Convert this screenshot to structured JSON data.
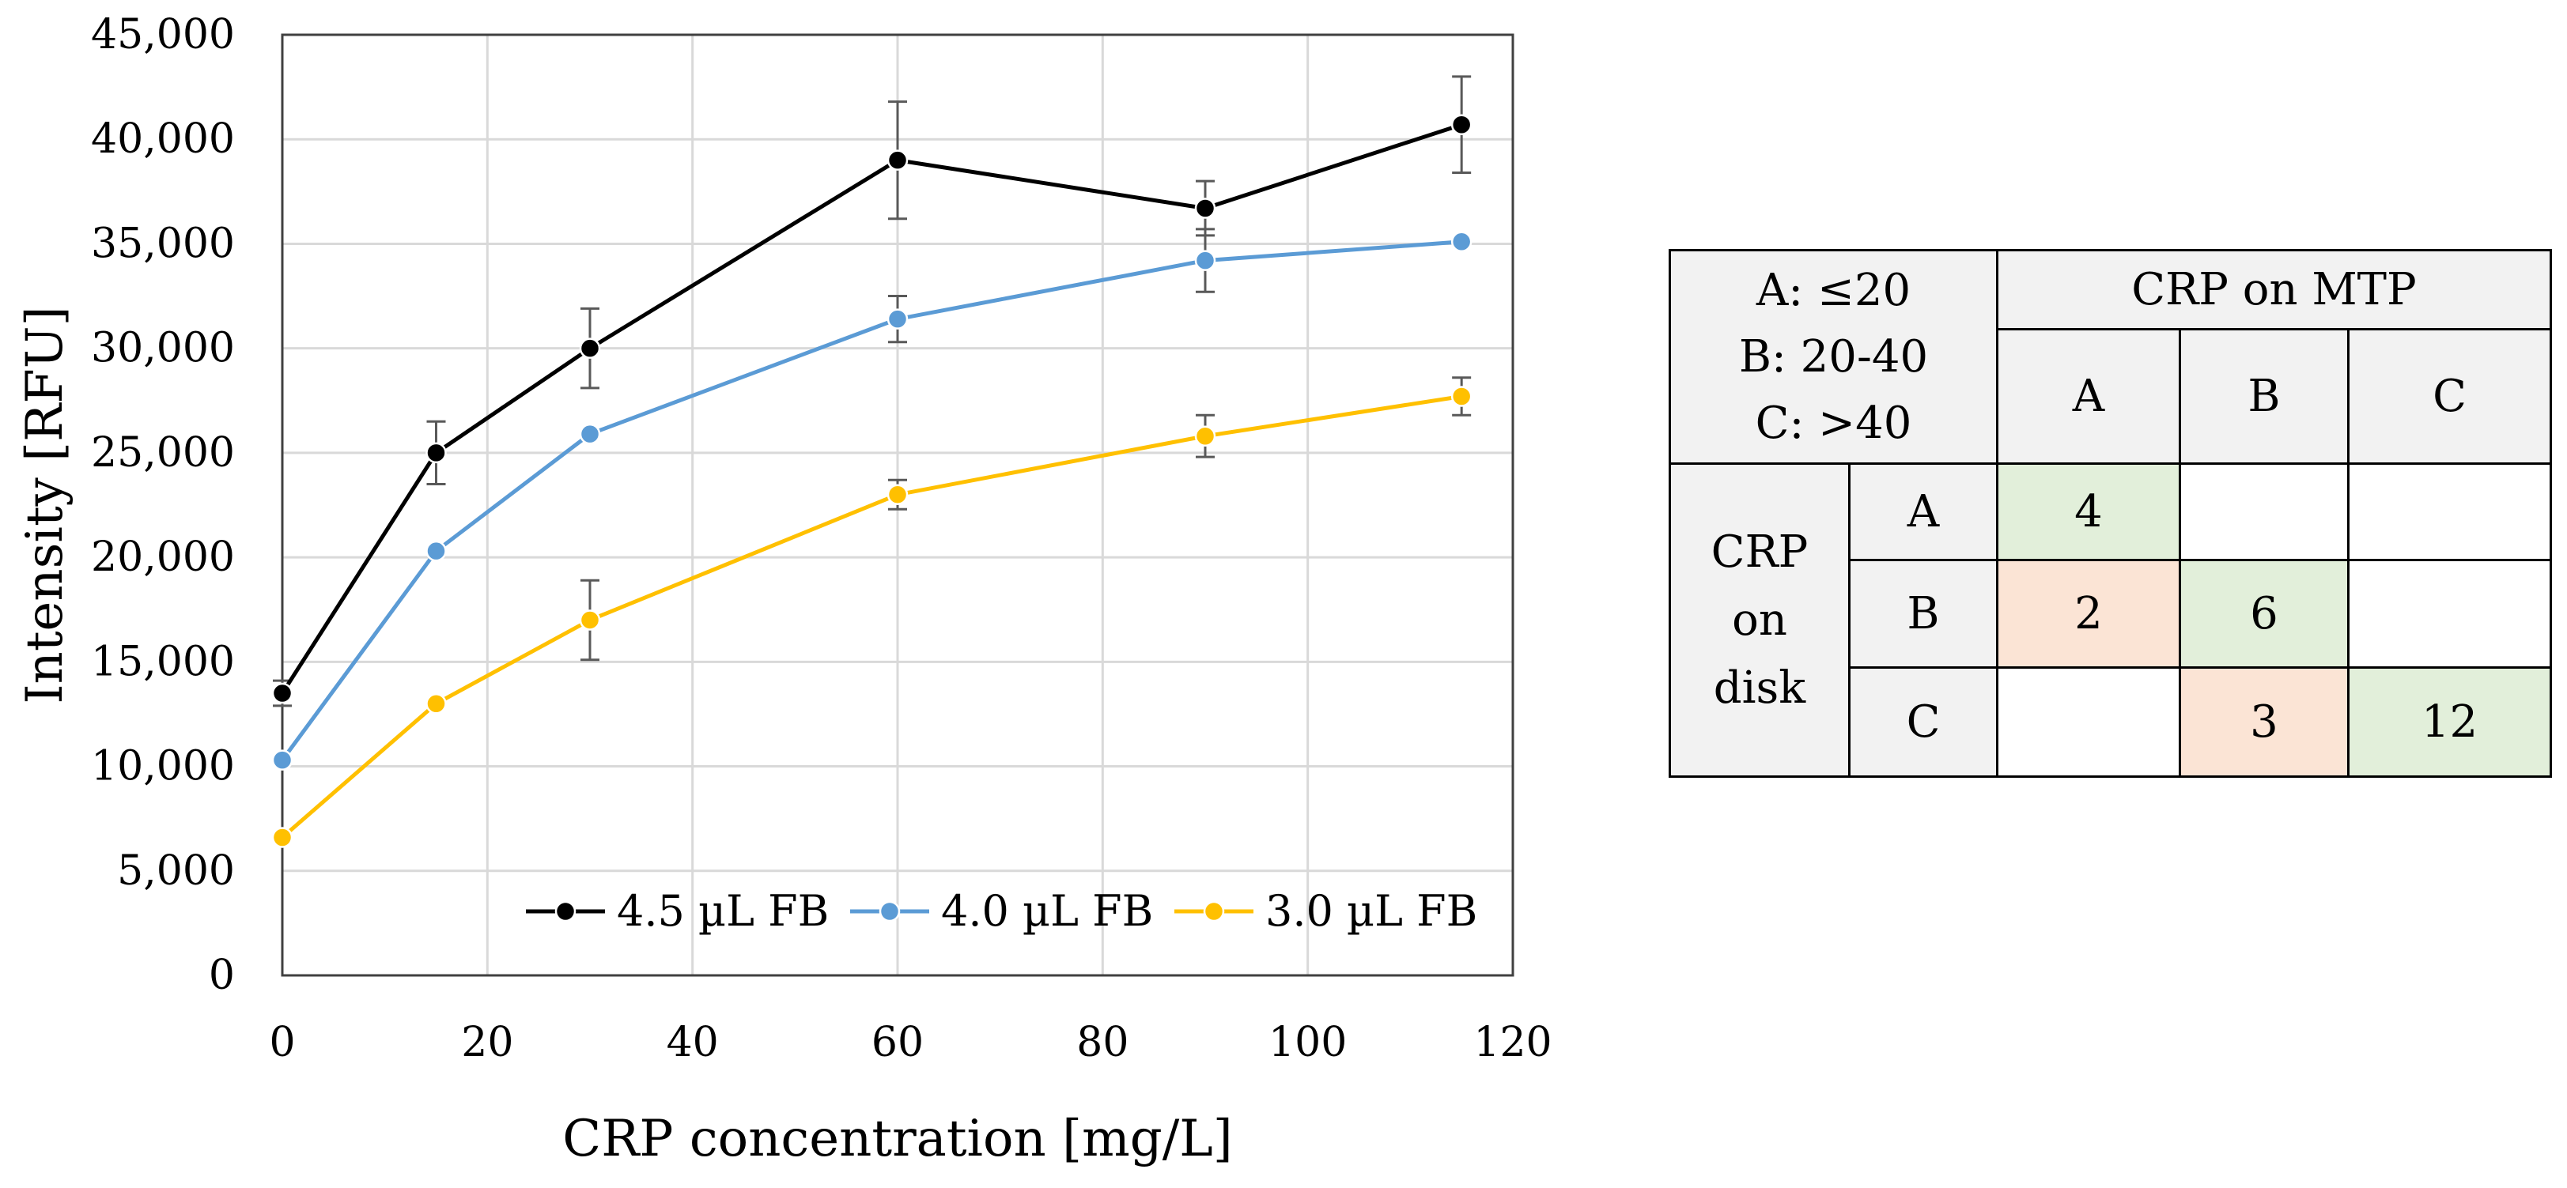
{
  "chart_data": {
    "type": "line",
    "xlabel": "CRP concentration [mg/L]",
    "ylabel": "Intensity [RFU]",
    "xlim": [
      0,
      120
    ],
    "ylim": [
      0,
      45000
    ],
    "x_ticks": [
      0,
      20,
      40,
      60,
      80,
      100,
      120
    ],
    "x_tick_labels": [
      "0",
      "20",
      "40",
      "60",
      "80",
      "100",
      "120"
    ],
    "y_ticks": [
      0,
      5000,
      10000,
      15000,
      20000,
      25000,
      30000,
      35000,
      40000,
      45000
    ],
    "y_tick_labels": [
      "0",
      "5,000",
      "10,000",
      "15,000",
      "20,000",
      "25,000",
      "30,000",
      "35,000",
      "40,000",
      "45,000"
    ],
    "grid": true,
    "legend_position": "bottom-right",
    "x": [
      0,
      15,
      30,
      60,
      90,
      115
    ],
    "series": [
      {
        "name": "4.5 µL FB",
        "color": "#000000",
        "values": [
          13500,
          25000,
          30000,
          39000,
          36700,
          40700
        ],
        "errors": [
          600,
          1500,
          1900,
          2800,
          1300,
          2300
        ]
      },
      {
        "name": "4.0 µL FB",
        "color": "#5b9bd5",
        "values": [
          10300,
          20300,
          25900,
          31400,
          34200,
          35100
        ],
        "errors": [
          0,
          0,
          0,
          1100,
          1500,
          0
        ]
      },
      {
        "name": "3.0 µL FB",
        "color": "#ffc000",
        "values": [
          6600,
          13000,
          17000,
          23000,
          25800,
          27700
        ],
        "errors": [
          0,
          0,
          1900,
          700,
          1000,
          900
        ]
      }
    ]
  },
  "matrix": {
    "key_lines": [
      "A: ≤20",
      "B: 20-40",
      "C: >40"
    ],
    "column_header": "CRP on MTP",
    "column_labels": [
      "A",
      "B",
      "C"
    ],
    "row_header_lines": [
      "CRP",
      "on",
      "disk"
    ],
    "row_labels": [
      "A",
      "B",
      "C"
    ],
    "cells": [
      [
        "4",
        "",
        ""
      ],
      [
        "2",
        "6",
        ""
      ],
      [
        "",
        "3",
        "12"
      ]
    ]
  }
}
